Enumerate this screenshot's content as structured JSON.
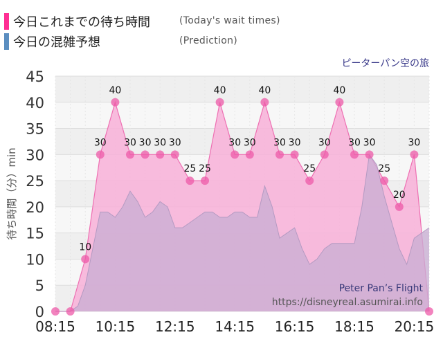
{
  "legend": {
    "actual_label": "今日これまでの待ち時間",
    "actual_sub": "(Today's wait times)",
    "actual_color": "#ff3d9a",
    "predict_label": "今日の混雑予想",
    "predict_sub": "(Prediction)",
    "predict_color": "#5b8ec0"
  },
  "chart_data": {
    "type": "area",
    "title": "ピーターパン空の旅",
    "ylabel": "待ち時間（分）min",
    "ylim": [
      0,
      45
    ],
    "yticks": [
      0,
      5,
      10,
      15,
      20,
      25,
      30,
      35,
      40,
      45
    ],
    "x_tick_labels": [
      "08:15",
      "10:15",
      "12:15",
      "14:15",
      "16:15",
      "18:15",
      "20:15"
    ],
    "watermark": "Peter Pan’s Flight",
    "source": "https://disneyreal.asumirai.info",
    "series": [
      {
        "id": "actual",
        "x": [
          "08:15",
          "08:45",
          "09:15",
          "09:45",
          "10:15",
          "10:45",
          "11:15",
          "11:45",
          "12:15",
          "12:45",
          "13:15",
          "13:45",
          "14:15",
          "14:45",
          "15:15",
          "15:45",
          "16:15",
          "16:45",
          "17:15",
          "17:45",
          "18:15",
          "18:45",
          "19:15",
          "19:45",
          "20:15",
          "20:45"
        ],
        "values": [
          0,
          0,
          10,
          30,
          40,
          30,
          30,
          30,
          30,
          25,
          25,
          40,
          30,
          30,
          40,
          30,
          30,
          25,
          30,
          40,
          30,
          30,
          25,
          20,
          30,
          0
        ],
        "labels": [
          "",
          "",
          "10",
          "30",
          "40",
          "30",
          "30",
          "30",
          "30",
          "25",
          "25",
          "40",
          "30",
          "30",
          "40",
          "30",
          "30",
          "25",
          "30",
          "40",
          "30",
          "30",
          "25",
          "20",
          "30",
          ""
        ]
      },
      {
        "id": "prediction",
        "x": [
          "08:15",
          "08:30",
          "08:45",
          "09:00",
          "09:15",
          "09:30",
          "09:45",
          "10:00",
          "10:15",
          "10:30",
          "10:45",
          "11:00",
          "11:15",
          "11:30",
          "11:45",
          "12:00",
          "12:15",
          "12:30",
          "12:45",
          "13:00",
          "13:15",
          "13:30",
          "13:45",
          "14:00",
          "14:15",
          "14:30",
          "14:45",
          "15:00",
          "15:15",
          "15:30",
          "15:45",
          "16:00",
          "16:15",
          "16:30",
          "16:45",
          "17:00",
          "17:15",
          "17:30",
          "17:45",
          "18:00",
          "18:15",
          "18:30",
          "18:45",
          "19:00",
          "19:15",
          "19:30",
          "19:45",
          "20:00",
          "20:15",
          "20:30",
          "20:45"
        ],
        "values": [
          0,
          0,
          0,
          1,
          5,
          12,
          19,
          19,
          18,
          20,
          23,
          21,
          18,
          19,
          21,
          20,
          16,
          16,
          17,
          18,
          19,
          19,
          18,
          18,
          19,
          19,
          18,
          18,
          24,
          20,
          14,
          15,
          16,
          12,
          9,
          10,
          12,
          13,
          13,
          13,
          13,
          20,
          30,
          28,
          22,
          17,
          12,
          9,
          14,
          15,
          16
        ]
      }
    ],
    "colors": {
      "actual_fill": "#f8b0d8",
      "actual_line": "#ee6fb2",
      "actual_point": "#ee5aa8",
      "predict_fill": "#c8aed3",
      "predict_line": "#b49ac2"
    },
    "grid": true
  }
}
